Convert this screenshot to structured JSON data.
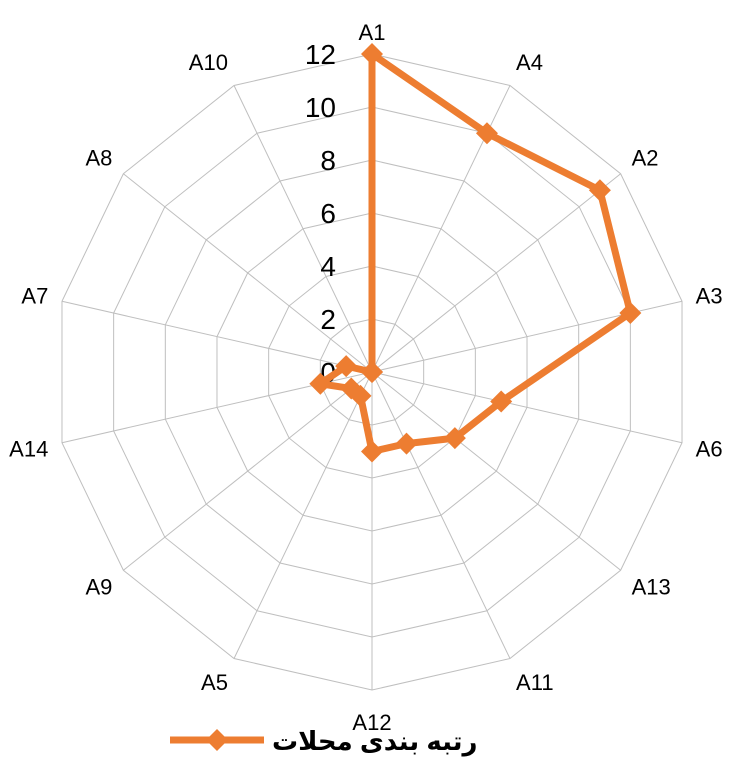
{
  "chart_data": {
    "type": "radar",
    "categories": [
      "A1",
      "A4",
      "A2",
      "A3",
      "A6",
      "A13",
      "A11",
      "A12",
      "A5",
      "A9",
      "A14",
      "A7",
      "A8",
      "A10"
    ],
    "series": [
      {
        "name": "رتبه بندی محلات",
        "values": [
          12,
          10,
          11,
          10,
          5,
          4,
          3,
          3,
          1,
          1,
          2,
          1,
          0,
          0
        ]
      }
    ],
    "rmin": 0,
    "rmax": 12,
    "ticks": [
      0,
      2,
      4,
      6,
      8,
      10,
      12
    ],
    "grid": true,
    "legend_position": "bottom",
    "colors": {
      "series": "#ED7D31",
      "grid": "#BFBFBF"
    },
    "marker": "diamond"
  }
}
